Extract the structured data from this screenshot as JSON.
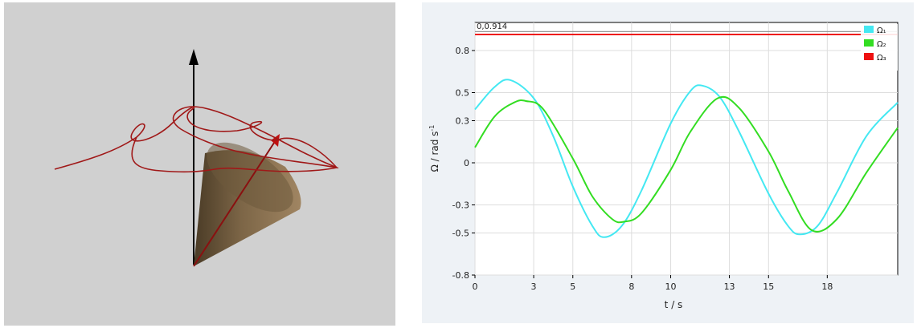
{
  "readout": "0,0.914",
  "chart_data": {
    "type": "line",
    "xlabel": "t / s",
    "ylabel": "Ω / rad s",
    "ylabel_sup": "-1",
    "xlim": [
      0,
      21.6
    ],
    "ylim": [
      -0.8,
      1.0
    ],
    "x_ticks": [
      0,
      3,
      5,
      8,
      10,
      13,
      15,
      18
    ],
    "y_ticks": [
      -0.8,
      -0.5,
      -0.3,
      0,
      0.3,
      0.5,
      0.8
    ],
    "y_tick_labels": [
      "-0.8",
      "-0.5",
      "-0.3",
      "0",
      "0.3",
      "0.5",
      "0.8"
    ],
    "grid": true,
    "legend_position": "top-right",
    "series": [
      {
        "name": "Ω₁",
        "color": "#44e8f2",
        "x": [
          0,
          1,
          1.8,
          3,
          4,
          5,
          6,
          6.6,
          7.5,
          8.5,
          10,
          11,
          11.6,
          12.5,
          13.5,
          15,
          16,
          16.6,
          17.5,
          18.5,
          20,
          21.6
        ],
        "values": [
          0.38,
          0.54,
          0.59,
          0.46,
          0.19,
          -0.17,
          -0.45,
          -0.53,
          -0.45,
          -0.2,
          0.28,
          0.51,
          0.55,
          0.47,
          0.22,
          -0.22,
          -0.45,
          -0.51,
          -0.45,
          -0.21,
          0.19,
          0.43
        ]
      },
      {
        "name": "Ω₂",
        "color": "#33dd22",
        "x": [
          0,
          1,
          2,
          2.6,
          3.5,
          5,
          6,
          7,
          7.6,
          8.5,
          10,
          11,
          12.4,
          13.5,
          15,
          16,
          17.2,
          18.5,
          20,
          21.6
        ],
        "values": [
          0.11,
          0.33,
          0.43,
          0.44,
          0.38,
          0.03,
          -0.24,
          -0.4,
          -0.42,
          -0.36,
          -0.05,
          0.22,
          0.46,
          0.39,
          0.08,
          -0.2,
          -0.48,
          -0.4,
          -0.07,
          0.25
        ]
      },
      {
        "name": "Ω₃",
        "color": "#ee1111",
        "x": [
          0,
          21.6
        ],
        "values": [
          0.914,
          0.914
        ]
      }
    ]
  }
}
